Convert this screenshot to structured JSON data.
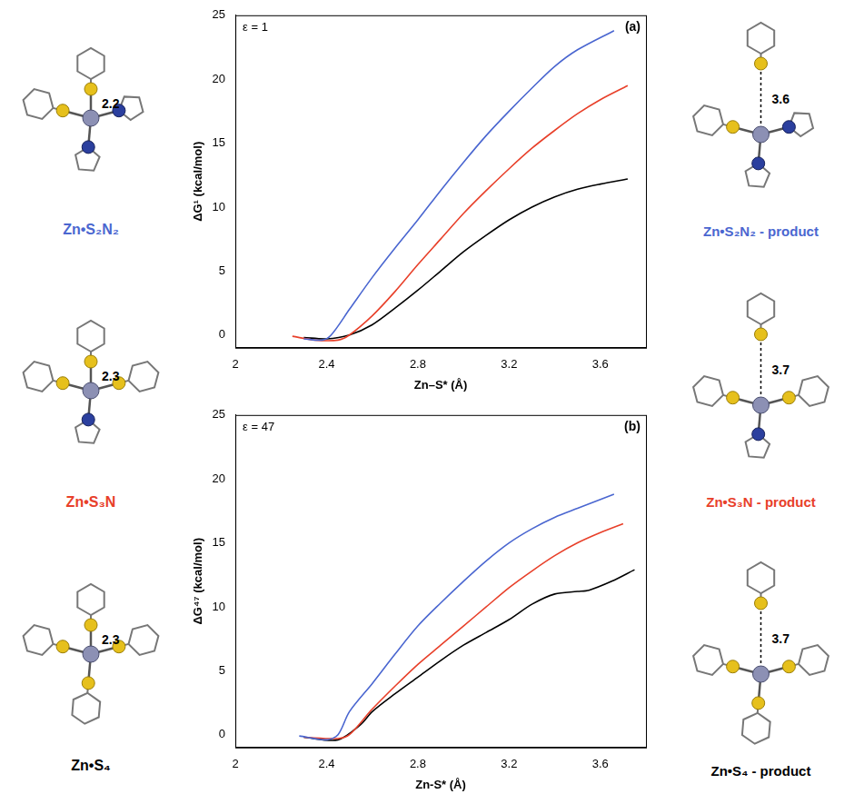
{
  "structures": [
    {
      "label": "Zn•S₂N₂",
      "distance": 2.2,
      "product_label": "Zn•S₂N₂ - product",
      "product_distance": 3.6
    },
    {
      "label": "Zn•S₃N",
      "distance": 2.3,
      "product_label": "Zn•S₃N - product",
      "product_distance": 3.7
    },
    {
      "label": "Zn•S₄",
      "distance": 2.3,
      "product_label": "Zn•S₄ - product",
      "product_distance": 3.7
    }
  ],
  "chart_data": [
    {
      "type": "line",
      "condition": "ε = 1",
      "panel_label": "(a)",
      "x_label": "Zn–S* (Å)",
      "y_label": "ΔG¹ (kcal/mol)",
      "xlim": [
        2,
        3.8
      ],
      "xticks": [
        2,
        2.4,
        2.8,
        3.2,
        3.6
      ],
      "ylim": [
        -1,
        25
      ],
      "yticks": [
        0,
        5,
        10,
        15,
        20,
        25
      ],
      "grid": false,
      "series": [
        {
          "name": "Zn•S₂N₂",
          "color": "#4a66d0",
          "x": [
            2.3,
            2.38,
            2.42,
            2.5,
            2.6,
            2.7,
            2.8,
            2.9,
            3.0,
            3.1,
            3.2,
            3.3,
            3.4,
            3.5,
            3.66
          ],
          "values": [
            -0.3,
            -0.4,
            0,
            2,
            4.5,
            6.8,
            9,
            11.3,
            13.5,
            15.6,
            17.5,
            19.3,
            21,
            22.3,
            23.8
          ]
        },
        {
          "name": "Zn•S₃N",
          "color": "#e8402a",
          "x": [
            2.25,
            2.35,
            2.45,
            2.5,
            2.6,
            2.7,
            2.8,
            2.9,
            3.0,
            3.1,
            3.2,
            3.3,
            3.4,
            3.5,
            3.6,
            3.72
          ],
          "values": [
            -0.1,
            -0.4,
            -0.4,
            0,
            1.5,
            3.4,
            5.5,
            7.5,
            9.5,
            11.3,
            13,
            14.6,
            16,
            17.3,
            18.4,
            19.5
          ]
        },
        {
          "name": "Zn•S₄",
          "color": "#000000",
          "x": [
            2.3,
            2.4,
            2.5,
            2.6,
            2.7,
            2.8,
            2.9,
            3.0,
            3.1,
            3.2,
            3.3,
            3.4,
            3.5,
            3.6,
            3.72
          ],
          "values": [
            -0.2,
            -0.3,
            0,
            0.8,
            2.1,
            3.5,
            5,
            6.5,
            7.8,
            9,
            10,
            10.8,
            11.4,
            11.8,
            12.2
          ]
        }
      ]
    },
    {
      "type": "line",
      "condition": "ε = 47",
      "panel_label": "(b)",
      "x_label": "Zn-S* (Å)",
      "y_label": "ΔG⁴⁷ (kcal/mol)",
      "xlim": [
        2,
        3.8
      ],
      "xticks": [
        2,
        2.4,
        2.8,
        3.2,
        3.6
      ],
      "ylim": [
        -1,
        25
      ],
      "yticks": [
        0,
        5,
        10,
        15,
        20,
        25
      ],
      "grid": false,
      "series": [
        {
          "name": "Zn•S₂N₂",
          "color": "#4a66d0",
          "x": [
            2.28,
            2.4,
            2.45,
            2.5,
            2.6,
            2.7,
            2.8,
            2.9,
            3.0,
            3.1,
            3.2,
            3.3,
            3.4,
            3.5,
            3.66
          ],
          "values": [
            -0.1,
            -0.4,
            0,
            1.8,
            4,
            6.3,
            8.5,
            10.3,
            12,
            13.6,
            15,
            16.1,
            17,
            17.7,
            18.8
          ]
        },
        {
          "name": "Zn•S₃N",
          "color": "#e8402a",
          "x": [
            2.3,
            2.45,
            2.5,
            2.6,
            2.7,
            2.8,
            2.9,
            3.0,
            3.1,
            3.2,
            3.3,
            3.4,
            3.5,
            3.6,
            3.7
          ],
          "values": [
            -0.2,
            -0.3,
            0,
            2,
            3.8,
            5.5,
            7,
            8.5,
            10,
            11.5,
            12.8,
            14,
            15,
            15.8,
            16.5
          ]
        },
        {
          "name": "Zn•S₄",
          "color": "#000000",
          "x": [
            2.3,
            2.45,
            2.55,
            2.6,
            2.7,
            2.8,
            2.9,
            3.0,
            3.1,
            3.2,
            3.3,
            3.4,
            3.5,
            3.55,
            3.65,
            3.75
          ],
          "values": [
            -0.2,
            -0.4,
            0.8,
            1.8,
            3.2,
            4.5,
            5.8,
            7,
            8,
            9,
            10.2,
            11,
            11.2,
            11.3,
            12,
            12.9
          ]
        }
      ]
    }
  ]
}
